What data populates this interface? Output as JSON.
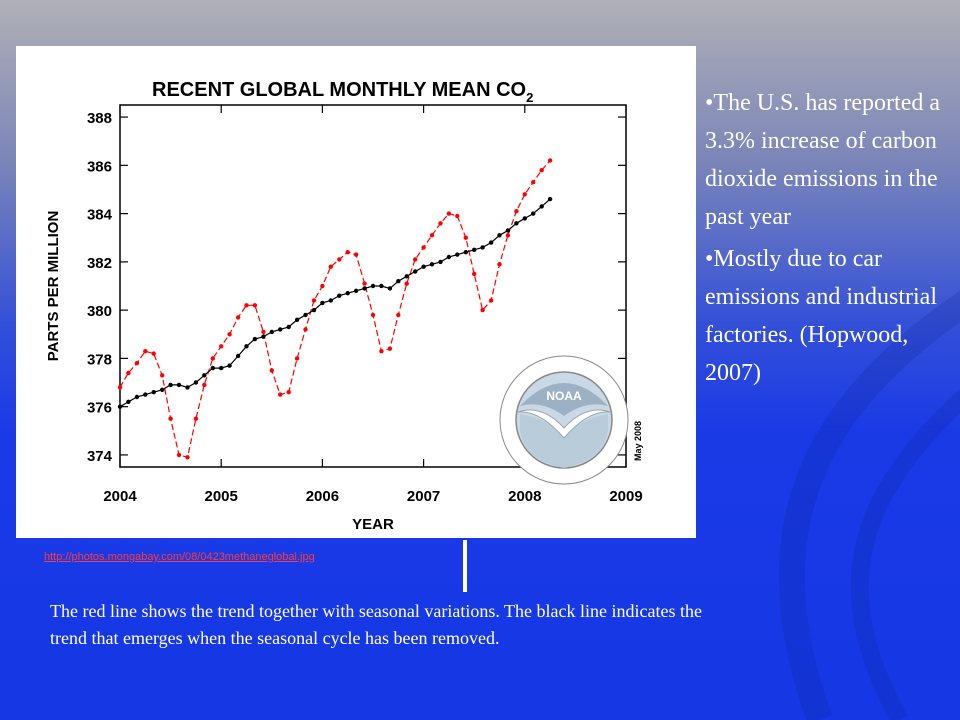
{
  "chart_data": {
    "type": "line",
    "title": "RECENT GLOBAL MONTHLY MEAN CO",
    "title_subscript": "2",
    "xlabel": "YEAR",
    "ylabel": "PARTS PER MILLION",
    "xlim": [
      2004,
      2009
    ],
    "ylim": [
      373.5,
      388.5
    ],
    "xticks": [
      "2004",
      "2005",
      "2006",
      "2007",
      "2008",
      "2009"
    ],
    "yticks": [
      "374",
      "376",
      "378",
      "380",
      "382",
      "384",
      "386",
      "388"
    ],
    "annotation": "May 2008",
    "grid": false,
    "x": [
      2004.0,
      2004.083,
      2004.167,
      2004.25,
      2004.333,
      2004.417,
      2004.5,
      2004.583,
      2004.667,
      2004.75,
      2004.833,
      2004.917,
      2005.0,
      2005.083,
      2005.167,
      2005.25,
      2005.333,
      2005.417,
      2005.5,
      2005.583,
      2005.667,
      2005.75,
      2005.833,
      2005.917,
      2006.0,
      2006.083,
      2006.167,
      2006.25,
      2006.333,
      2006.417,
      2006.5,
      2006.583,
      2006.667,
      2006.75,
      2006.833,
      2006.917,
      2007.0,
      2007.083,
      2007.167,
      2007.25,
      2007.333,
      2007.417,
      2007.5,
      2007.583,
      2007.667,
      2007.75,
      2007.833,
      2007.917,
      2008.0,
      2008.083,
      2008.167,
      2008.25
    ],
    "series": [
      {
        "color": "#ff0000",
        "dashed": true,
        "values": [
          376.8,
          377.4,
          377.8,
          378.3,
          378.2,
          377.3,
          375.5,
          374.0,
          373.9,
          375.5,
          376.9,
          378.0,
          378.5,
          379.0,
          379.7,
          380.2,
          380.2,
          379.1,
          377.5,
          376.5,
          376.6,
          378.0,
          379.2,
          380.4,
          381.0,
          381.8,
          382.1,
          382.4,
          382.3,
          381.1,
          379.8,
          378.3,
          378.4,
          379.8,
          381.1,
          382.1,
          382.6,
          383.1,
          383.6,
          384.0,
          383.9,
          383.0,
          381.5,
          380.0,
          380.4,
          381.9,
          383.1,
          384.1,
          384.8,
          385.3,
          385.8,
          386.2
        ]
      },
      {
        "color": "#000000",
        "dashed": false,
        "values": [
          376.0,
          376.2,
          376.4,
          376.5,
          376.6,
          376.7,
          376.9,
          376.9,
          376.8,
          377.0,
          377.3,
          377.6,
          377.6,
          377.7,
          378.1,
          378.5,
          378.8,
          378.9,
          379.1,
          379.2,
          379.3,
          379.6,
          379.8,
          380.0,
          380.3,
          380.4,
          380.6,
          380.7,
          380.8,
          380.9,
          381.0,
          381.0,
          380.9,
          381.2,
          381.4,
          381.6,
          381.8,
          381.9,
          382.0,
          382.2,
          382.3,
          382.4,
          382.5,
          382.6,
          382.8,
          383.1,
          383.3,
          383.6,
          383.8,
          384.0,
          384.3,
          384.6
        ]
      }
    ]
  },
  "logo": {
    "text": "NOAA"
  },
  "bullets": [
    "•The U.S. has reported a 3.3% increase of carbon dioxide emissions in the past year",
    "•Mostly due to car emissions and industrial factories. (Hopwood, 2007)"
  ],
  "source_link": "http://photos.mongabay.com/08/0423methaneglobal.jpg",
  "caption": "The red line shows the trend together with seasonal variations. The black line indicates the trend that emerges when the seasonal cycle has been removed.",
  "colors": {
    "red_series": "#ff0000",
    "black_series": "#000000",
    "background": "#1a3ae6",
    "text": "#ffffff"
  }
}
